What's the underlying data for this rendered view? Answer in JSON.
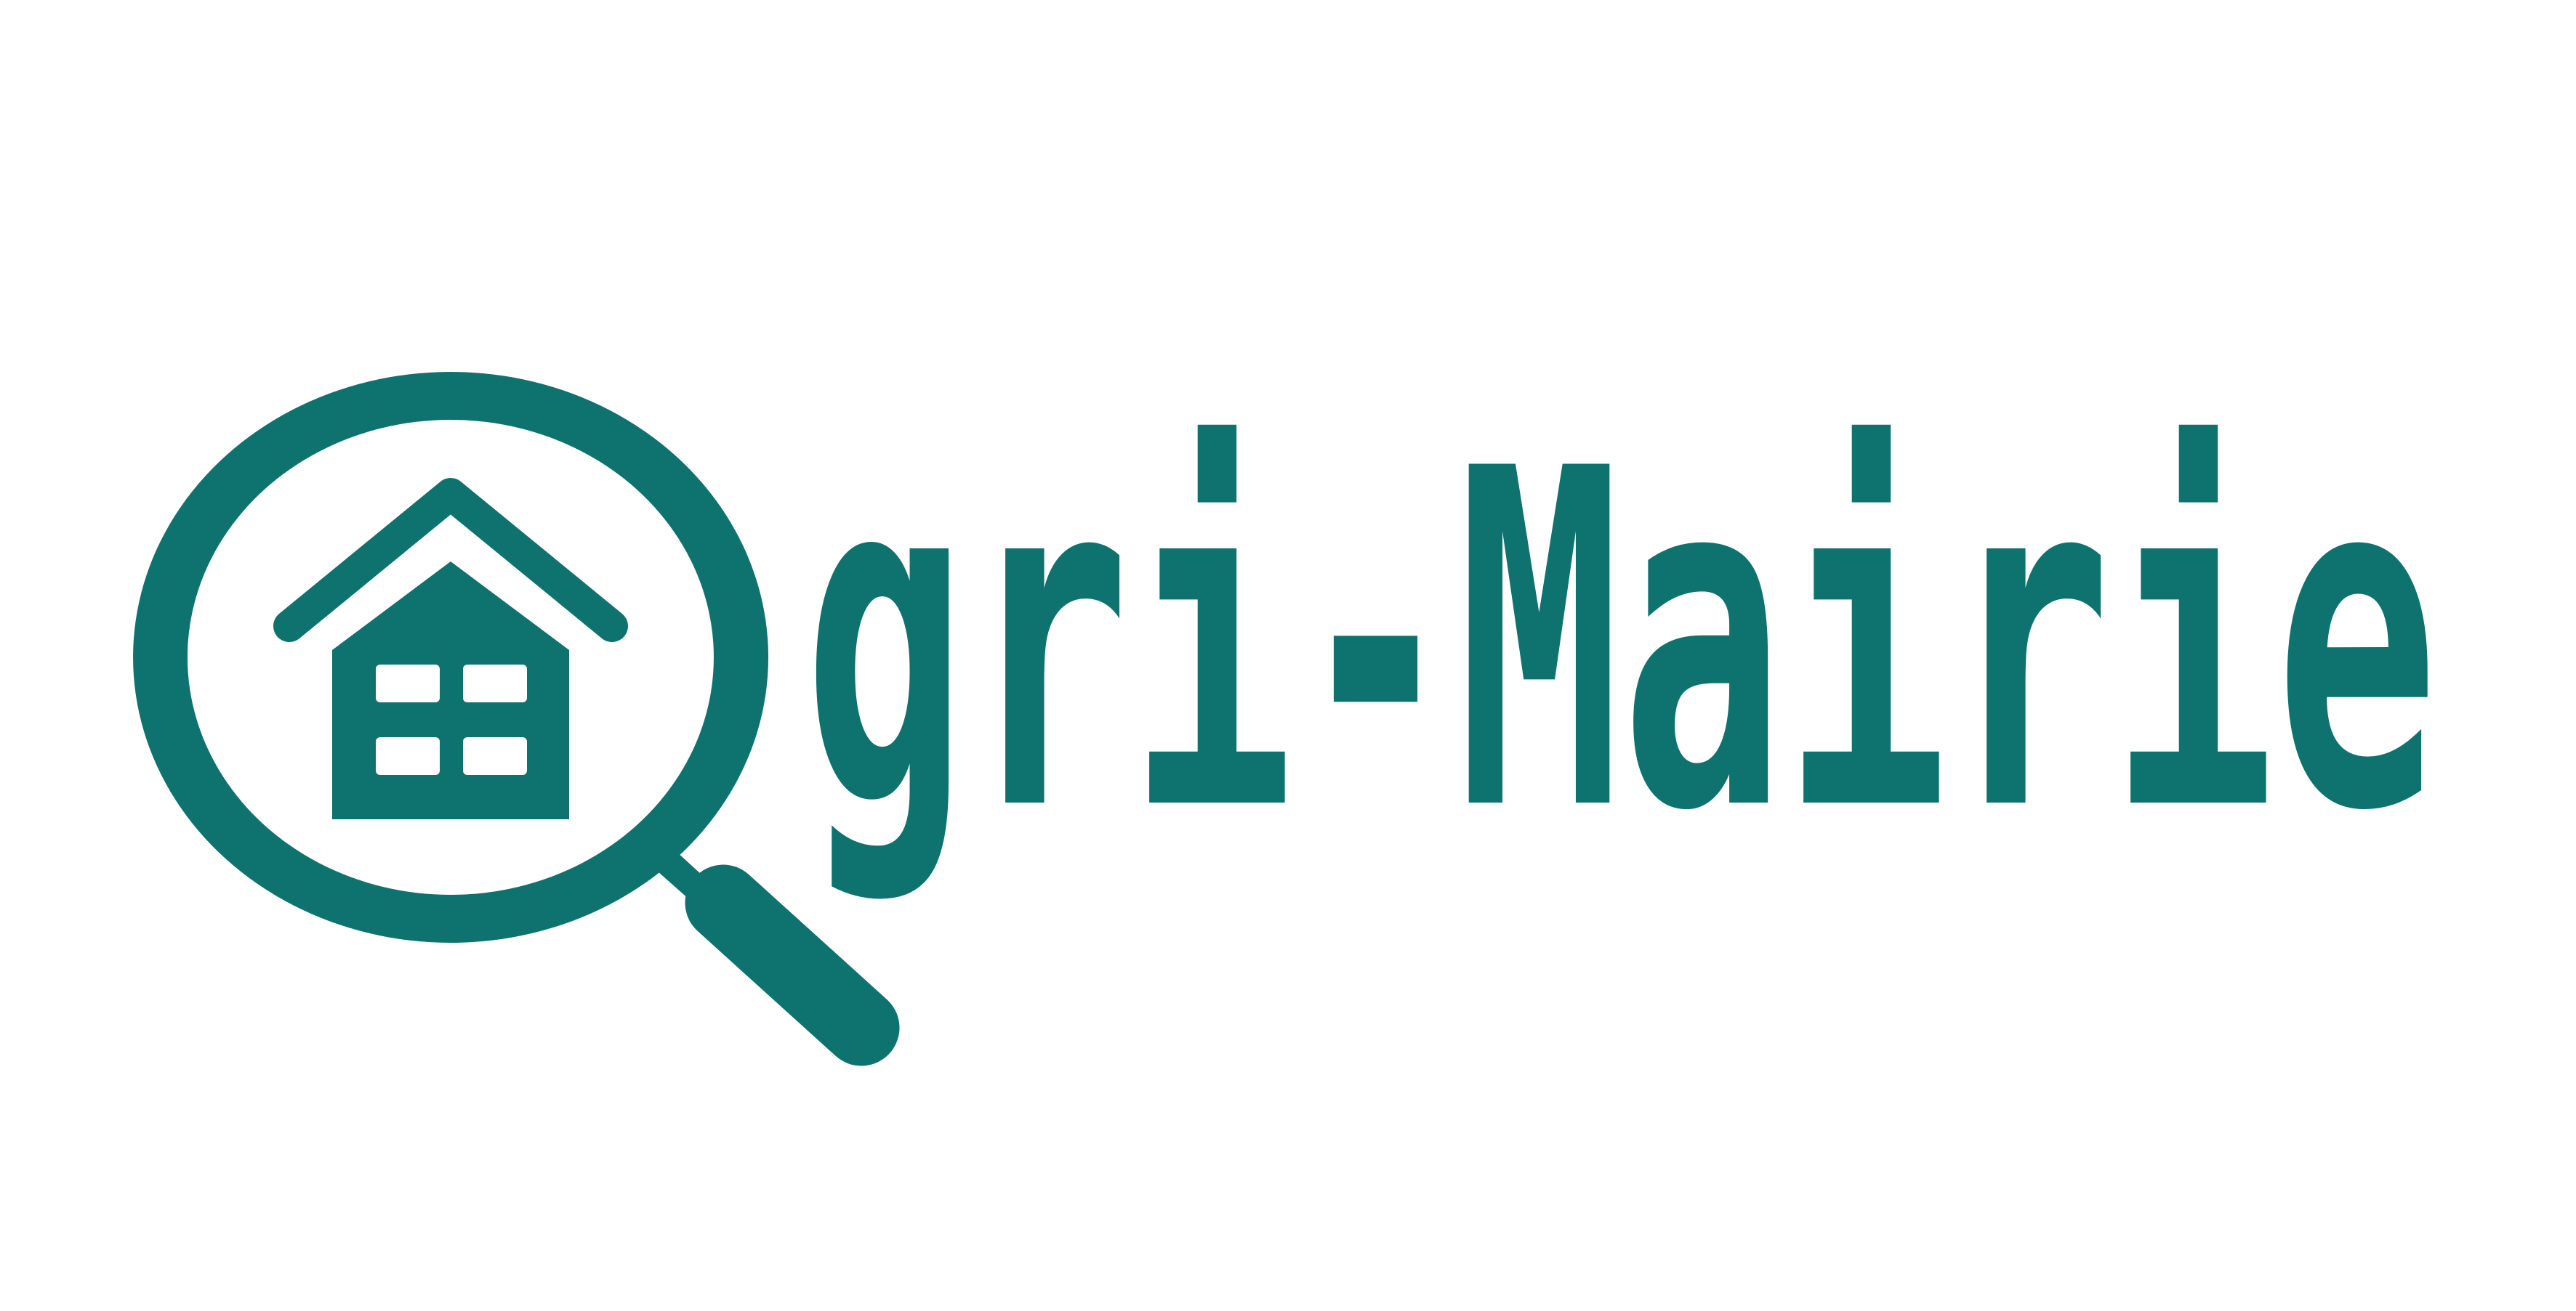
{
  "logo": {
    "wordmark": "gri-Mairie",
    "brand_color": "#0e736f",
    "background_color": "#ffffff",
    "icon": "magnifier-house-icon"
  }
}
